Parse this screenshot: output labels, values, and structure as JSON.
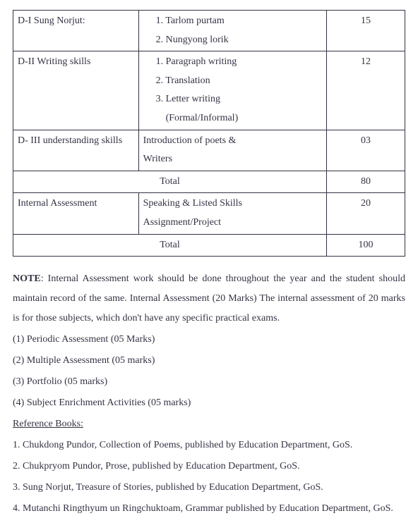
{
  "table": {
    "rows": [
      {
        "c1": "D-I Sung Norjut:",
        "c2_lines": [
          "1.  Tarlom purtam",
          "2.  Nungyong lorik"
        ],
        "c3": "15"
      },
      {
        "c1": "D-II Writing skills",
        "c2_lines": [
          "1.  Paragraph writing",
          "2.  Translation",
          "3.  Letter writing",
          "    (Formal/Informal)"
        ],
        "c3": "12"
      },
      {
        "c1": "D- III understanding skills",
        "c2_lines": [
          "Introduction of poets &",
          "Writers"
        ],
        "c3": "03"
      },
      {
        "total": true,
        "label": "Total",
        "value": "80"
      },
      {
        "c1": "Internal Assessment",
        "c2_lines": [
          "Speaking & Listed Skills",
          "Assignment/Project"
        ],
        "c3": "20"
      },
      {
        "total": true,
        "label": "Total",
        "value": "100"
      }
    ]
  },
  "note_bold": "NOTE",
  "note_text": ": Internal Assessment work should be done throughout the year and the student should maintain record of the same. Internal Assessment (20 Marks) The internal assessment of 20 marks is for those subjects, which don't have any specific practical exams.",
  "items": [
    "(1) Periodic Assessment (05 Marks)",
    "(2) Multiple Assessment (05 marks)",
    "(3) Portfolio (05 marks)",
    "(4) Subject Enrichment Activities (05 marks)"
  ],
  "ref_title": "Reference Books",
  "refs": [
    "1. Chukdong Pundor, Collection of Poems, published by Education Department, GoS.",
    "2. Chukpryom Pundor, Prose, published by Education Department, GoS.",
    "3. Sung Norjut, Treasure of Stories, published by Education Department, GoS.",
    "4. Mutanchi Ringthyum un Ringchuktoam, Grammar published by Education Department, GoS."
  ]
}
